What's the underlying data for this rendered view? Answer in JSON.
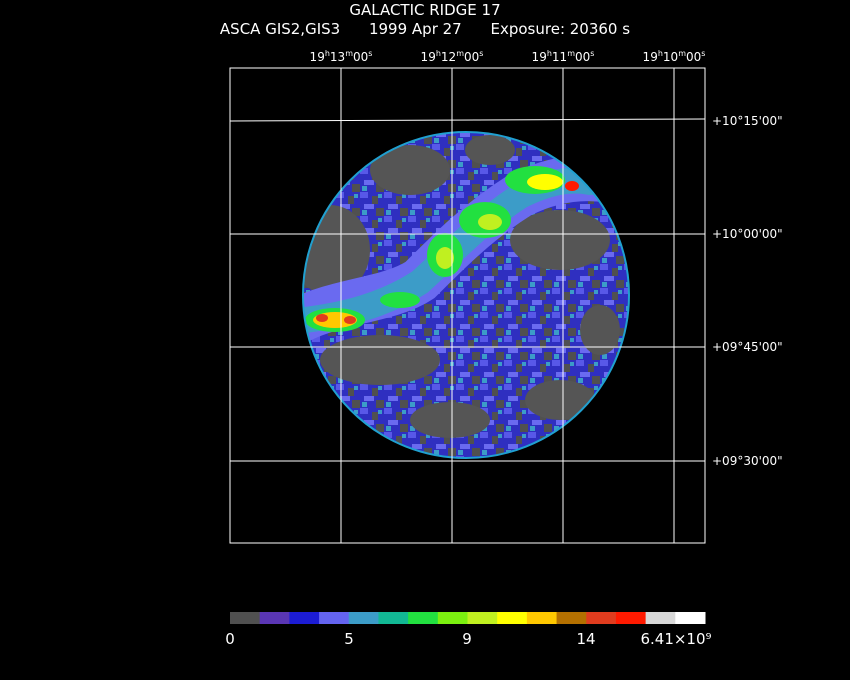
{
  "header": {
    "title": "GALACTIC RIDGE 17",
    "instrument": "ASCA GIS2,GIS3",
    "date": "1999 Apr 27",
    "exposure": "Exposure: 20360 s"
  },
  "ra_ticks": [
    {
      "h": "19",
      "m": "13",
      "s": "00"
    },
    {
      "h": "19",
      "m": "12",
      "s": "00"
    },
    {
      "h": "19",
      "m": "11",
      "s": "00"
    },
    {
      "h": "19",
      "m": "10",
      "s": "00"
    }
  ],
  "dec_ticks": [
    "+10°15'00\"",
    "+10°00'00\"",
    "+09°45'00\"",
    "+09°30'00\""
  ],
  "colorbar": {
    "colors": [
      "#505050",
      "#5a36b4",
      "#1c1cd4",
      "#6464f0",
      "#3c9cc8",
      "#12b894",
      "#22e040",
      "#7cf010",
      "#c0f020",
      "#ffff00",
      "#ffc800",
      "#b47000",
      "#e03c1e",
      "#ff1a00",
      "#d8d8d8",
      "#ffffff"
    ],
    "labels": [
      "0",
      "5",
      "9",
      "14",
      "6.41×10⁹"
    ]
  },
  "image": {
    "background_color": "#5a5a5a",
    "low_color": "#3030c8",
    "mid_color": "#6a6af0",
    "high_colors": [
      "#00e060",
      "#a0f000",
      "#ffff00",
      "#ff2000"
    ]
  }
}
